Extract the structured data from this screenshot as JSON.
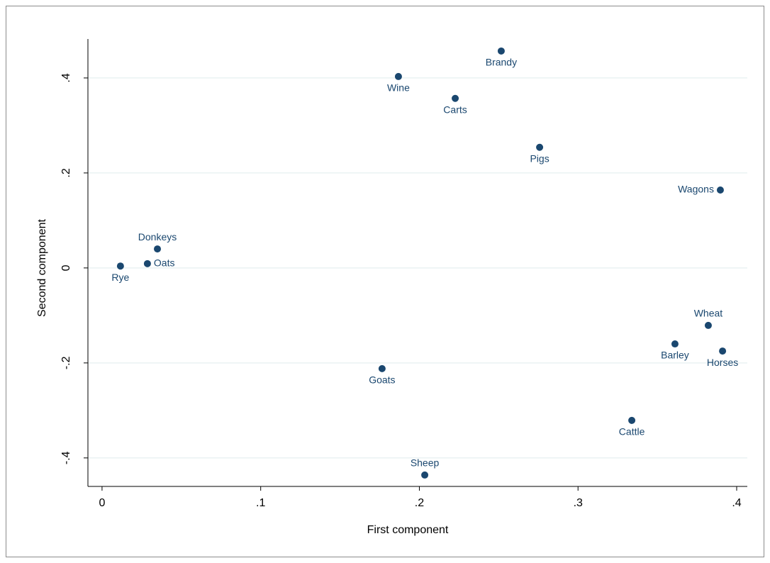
{
  "chart_data": {
    "type": "scatter",
    "x_label": "First component",
    "y_label": "Second component",
    "series": [
      {
        "color": "#1a476f",
        "labels": [
          "Brandy",
          "Wine",
          "Carts",
          "Pigs",
          "Wagons",
          "Donkeys",
          "Oats",
          "Rye",
          "Wheat",
          "Barley",
          "Horses",
          "Goats",
          "Cattle",
          "Sheep"
        ],
        "x": [
          0.2516,
          0.1868,
          0.2226,
          0.2758,
          0.3897,
          0.0349,
          0.0286,
          0.0116,
          0.3821,
          0.3611,
          0.3911,
          0.1765,
          0.3339,
          0.2034
        ],
        "values": [
          0.4567,
          0.403,
          0.357,
          0.254,
          0.164,
          0.04,
          0.009,
          0.004,
          -0.121,
          -0.16,
          -0.175,
          -0.212,
          -0.321,
          -0.436
        ]
      }
    ],
    "xlim": [
      -0.0089,
      0.4067
    ],
    "xticks": [
      0,
      {
        "value": 0.1,
        "label": ".1"
      },
      {
        "value": 0.2,
        "label": ".2"
      },
      {
        "value": 0.3,
        "label": ".3"
      },
      {
        "value": 0.4,
        "label": ".4"
      }
    ],
    "ylim": [
      -0.46,
      0.482
    ],
    "yticks": [
      {
        "value": -0.4,
        "label": "-.4"
      },
      {
        "value": -0.2,
        "label": "-.2"
      },
      0,
      {
        "value": 0.2,
        "label": ".2"
      },
      {
        "value": 0.4,
        "label": ".4"
      }
    ],
    "grid": true
  }
}
